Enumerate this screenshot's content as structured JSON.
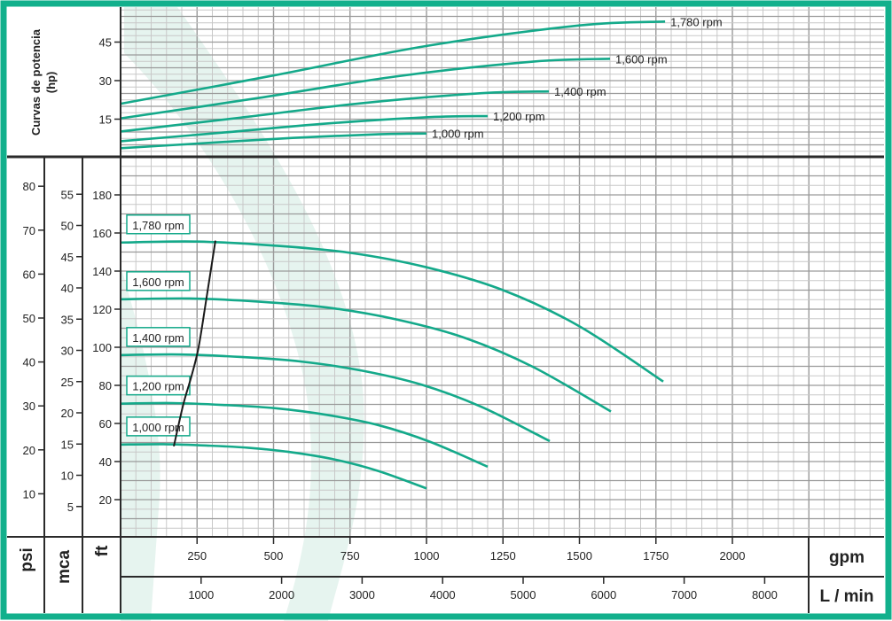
{
  "colors": {
    "accent": "#12b08c",
    "curve": "#14a98a",
    "swoosh": "#e6f4ef",
    "grid_major": "#9a9a9a",
    "grid_minor": "#c8c8c8",
    "frame": "#2a2a2a"
  },
  "chart_data": [
    {
      "type": "line",
      "title": "",
      "ylabel": "Curvas de potencia",
      "ylabel_unit": "(hp)",
      "xlabel": "gpm",
      "xlim": [
        0,
        2500
      ],
      "ylim": [
        0,
        58
      ],
      "yticks": [
        15,
        30,
        45
      ],
      "grid": true,
      "series": [
        {
          "name": "1,780 rpm",
          "x": [
            0,
            500,
            1000,
            1500,
            1780
          ],
          "y": [
            21,
            32,
            43.5,
            51.5,
            53
          ]
        },
        {
          "name": "1,600 rpm",
          "x": [
            0,
            449,
            899,
            1348,
            1600
          ],
          "y": [
            15.3,
            23.2,
            31.6,
            37.4,
            38.5
          ]
        },
        {
          "name": "1,400 rpm",
          "x": [
            0,
            393,
            787,
            1180,
            1400
          ],
          "y": [
            10.2,
            15.6,
            21.2,
            25.1,
            25.8
          ]
        },
        {
          "name": "1,200 rpm",
          "x": [
            0,
            337,
            674,
            1011,
            1200
          ],
          "y": [
            6.4,
            9.8,
            13.3,
            15.8,
            16.2
          ]
        },
        {
          "name": "1,000 rpm",
          "x": [
            0,
            281,
            562,
            843,
            1000
          ],
          "y": [
            3.7,
            5.7,
            7.7,
            9.1,
            9.4
          ]
        }
      ]
    },
    {
      "type": "line",
      "title": "",
      "xlabel": "gpm",
      "xlabel2": "L / min",
      "xlim": [
        0,
        2500
      ],
      "ylim": [
        0,
        200
      ],
      "xticks": [
        250,
        500,
        750,
        1000,
        1250,
        1500,
        1750,
        2000
      ],
      "xticks2": [
        1000,
        2000,
        3000,
        4000,
        5000,
        6000,
        7000,
        8000
      ],
      "yaxes": [
        {
          "label": "psi",
          "ticks": [
            10,
            20,
            30,
            40,
            50,
            60,
            70,
            80
          ]
        },
        {
          "label": "mca",
          "ticks": [
            5,
            10,
            15,
            20,
            25,
            30,
            35,
            40,
            45,
            50,
            55
          ]
        },
        {
          "label": "ft",
          "ticks": [
            20,
            40,
            60,
            80,
            100,
            120,
            140,
            160,
            180
          ]
        }
      ],
      "grid": true,
      "series": [
        {
          "name": "1,780 rpm",
          "x": [
            0,
            250,
            500,
            750,
            1000,
            1250,
            1500,
            1774
          ],
          "y": [
            155,
            155.5,
            153.4,
            149.6,
            142,
            130,
            111,
            82
          ]
        },
        {
          "name": "1,600 rpm",
          "x": [
            0,
            225,
            449,
            674,
            899,
            1124,
            1348,
            1603
          ],
          "y": [
            125.2,
            125.6,
            124,
            120.9,
            114.7,
            105,
            89.7,
            66.3
          ]
        },
        {
          "name": "1,400 rpm",
          "x": [
            0,
            197,
            393,
            590,
            787,
            983,
            1180,
            1403
          ],
          "y": [
            95.9,
            96.2,
            94.9,
            92.5,
            87.8,
            80.4,
            68.7,
            50.7
          ]
        },
        {
          "name": "1,200 rpm",
          "x": [
            0,
            169,
            337,
            506,
            674,
            843,
            1011,
            1200
          ],
          "y": [
            70.4,
            70.7,
            69.7,
            68,
            64.5,
            59.1,
            50.4,
            37.3
          ]
        },
        {
          "name": "1,000 rpm",
          "x": [
            0,
            140,
            281,
            421,
            562,
            702,
            843,
            1000
          ],
          "y": [
            48.9,
            49.1,
            48.4,
            47.2,
            44.8,
            41,
            35,
            25.9
          ]
        }
      ],
      "boundary_line": {
        "x": [
          174,
          205,
          232,
          255,
          280,
          310
        ],
        "y": [
          48,
          70,
          85,
          100,
          125,
          156
        ]
      }
    }
  ]
}
